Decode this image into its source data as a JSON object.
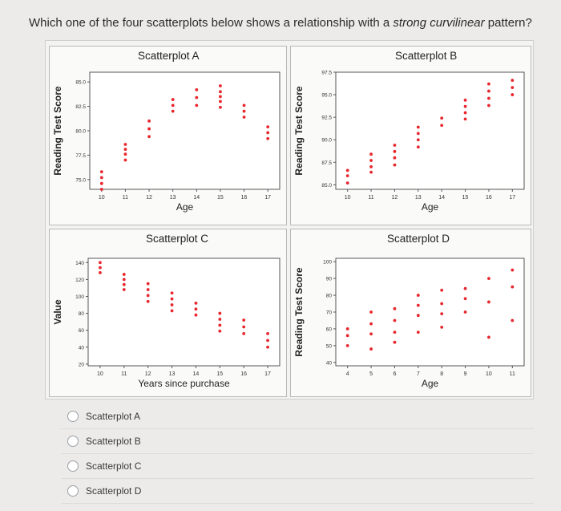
{
  "question": {
    "prefix": "Which one of the four scatterplots below shows a relationship with a ",
    "emphasis": "strong curvilinear",
    "suffix": " pattern?"
  },
  "options": [
    {
      "label": "Scatterplot A"
    },
    {
      "label": "Scatterplot B"
    },
    {
      "label": "Scatterplot C"
    },
    {
      "label": "Scatterplot D"
    }
  ],
  "colors": {
    "point": "#e8262d",
    "axis": "#555555"
  },
  "chart_data": [
    {
      "type": "scatter",
      "title": "Scatterplot A",
      "xlabel": "Age",
      "ylabel": "Reading Test Score",
      "xlim": [
        9.5,
        17.5
      ],
      "ylim": [
        74,
        86
      ],
      "xticks": [
        "10",
        "11",
        "12",
        "13",
        "14",
        "15",
        "16",
        "17"
      ],
      "yticks": [
        "75.0",
        "77.5",
        "80.0",
        "82.5",
        "85.0"
      ],
      "x": [
        10,
        10,
        10,
        10,
        11,
        11,
        11,
        11,
        12,
        12,
        12,
        13,
        13,
        13,
        14,
        14,
        14,
        15,
        15,
        15,
        15,
        15,
        16,
        16,
        16,
        17,
        17,
        17
      ],
      "y": [
        75.8,
        75.2,
        74.6,
        74.0,
        78.6,
        78.1,
        77.6,
        77.0,
        81.0,
        80.2,
        79.4,
        83.2,
        82.6,
        82.0,
        84.2,
        83.4,
        82.6,
        84.6,
        84.0,
        83.5,
        83.0,
        82.4,
        82.6,
        82.0,
        81.4,
        80.4,
        79.8,
        79.2
      ]
    },
    {
      "type": "scatter",
      "title": "Scatterplot B",
      "xlabel": "Age",
      "ylabel": "Reading Test Score",
      "xlim": [
        9.5,
        17.5
      ],
      "ylim": [
        84.5,
        97.5
      ],
      "xticks": [
        "10",
        "11",
        "12",
        "13",
        "14",
        "15",
        "16",
        "17"
      ],
      "yticks": [
        "85.0",
        "87.5",
        "90.0",
        "92.5",
        "95.0",
        "97.5"
      ],
      "x": [
        10,
        10,
        10,
        11,
        11,
        11,
        11,
        12,
        12,
        12,
        12,
        13,
        13,
        13,
        13,
        14,
        14,
        15,
        15,
        15,
        15,
        16,
        16,
        16,
        16,
        17,
        17,
        17
      ],
      "y": [
        86.6,
        86.0,
        85.2,
        88.4,
        87.7,
        87.0,
        86.4,
        89.4,
        88.7,
        88.0,
        87.2,
        91.4,
        90.7,
        90.0,
        89.2,
        92.4,
        91.6,
        94.4,
        93.7,
        93.0,
        92.3,
        96.2,
        95.4,
        94.6,
        93.8,
        96.6,
        95.8,
        95.0
      ]
    },
    {
      "type": "scatter",
      "title": "Scatterplot C",
      "xlabel": "Years since purchase",
      "ylabel": "Value",
      "xlim": [
        9.5,
        17.5
      ],
      "ylim": [
        18,
        145
      ],
      "xticks": [
        "10",
        "11",
        "12",
        "13",
        "14",
        "15",
        "16",
        "17"
      ],
      "yticks": [
        "20",
        "40",
        "60",
        "80",
        "100",
        "120",
        "140"
      ],
      "x": [
        10,
        10,
        10,
        11,
        11,
        11,
        11,
        12,
        12,
        12,
        12,
        13,
        13,
        13,
        13,
        14,
        14,
        14,
        15,
        15,
        15,
        15,
        16,
        16,
        16,
        17,
        17,
        17
      ],
      "y": [
        140,
        134,
        128,
        126,
        120,
        114,
        108,
        115,
        108,
        101,
        94,
        104,
        97,
        90,
        83,
        92,
        85,
        78,
        80,
        73,
        66,
        59,
        72,
        64,
        56,
        56,
        48,
        40
      ]
    },
    {
      "type": "scatter",
      "title": "Scatterplot D",
      "xlabel": "Age",
      "ylabel": "Reading Test Score",
      "xlim": [
        3.5,
        11.5
      ],
      "ylim": [
        38,
        102
      ],
      "xticks": [
        "4",
        "5",
        "6",
        "7",
        "8",
        "9",
        "10",
        "11"
      ],
      "yticks": [
        "40",
        "50",
        "60",
        "70",
        "80",
        "90",
        "100"
      ],
      "x": [
        4,
        4,
        4,
        5,
        5,
        5,
        5,
        6,
        6,
        6,
        6,
        7,
        7,
        7,
        7,
        8,
        8,
        8,
        8,
        9,
        9,
        9,
        10,
        10,
        10,
        11,
        11,
        11
      ],
      "y": [
        60,
        56,
        50,
        70,
        63,
        57,
        48,
        72,
        65,
        58,
        52,
        80,
        74,
        68,
        58,
        83,
        75,
        69,
        61,
        84,
        78,
        70,
        90,
        76,
        55,
        95,
        85,
        65
      ]
    }
  ]
}
